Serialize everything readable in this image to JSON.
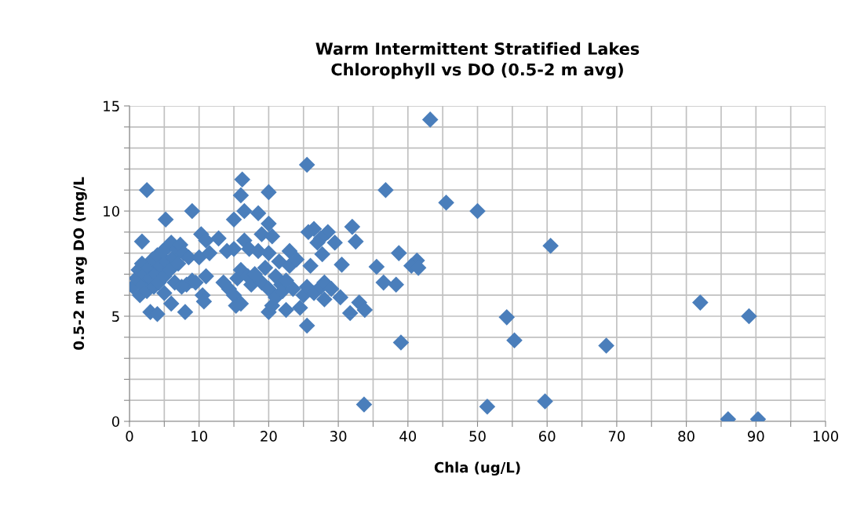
{
  "chart_data": {
    "type": "scatter",
    "title": "Warm Intermittent Stratified Lakes\nChlorophyll vs DO (0.5-2 m avg)",
    "xlabel": "Chla (ug/L)",
    "ylabel": "0.5-2 m avg DO (mg/L",
    "xlim": [
      0,
      100
    ],
    "ylim": [
      0,
      15
    ],
    "xticks": [
      0,
      {
        "value": 5,
        "label": null
      },
      10,
      {
        "value": 15,
        "label": null
      },
      20,
      {
        "value": 25,
        "label": null
      },
      30,
      {
        "value": 35,
        "label": null
      },
      40,
      {
        "value": 45,
        "label": null
      },
      50,
      {
        "value": 55,
        "label": null
      },
      60,
      {
        "value": 65,
        "label": null
      },
      70,
      {
        "value": 75,
        "label": null
      },
      80,
      {
        "value": 85,
        "label": null
      },
      90,
      {
        "value": 95,
        "label": null
      },
      100
    ],
    "yticks": [
      0,
      {
        "value": 1,
        "label": null
      },
      {
        "value": 2,
        "label": null
      },
      {
        "value": 3,
        "label": null
      },
      {
        "value": 4,
        "label": null
      },
      5,
      {
        "value": 6,
        "label": null
      },
      {
        "value": 7,
        "label": null
      },
      {
        "value": 8,
        "label": null
      },
      {
        "value": 9,
        "label": null
      },
      10,
      {
        "value": 11,
        "label": null
      },
      {
        "value": 12,
        "label": null
      },
      {
        "value": 13,
        "label": null
      },
      {
        "value": 14,
        "label": null
      },
      15
    ],
    "grid": true,
    "marker": "diamond",
    "legend": false,
    "series": [
      {
        "color": "#4a7ebb",
        "x": [
          43.2,
          25.5,
          16.2,
          2.5,
          36.8,
          20,
          16,
          45.5,
          50,
          9,
          16.5,
          18.5,
          5.2,
          15,
          20,
          60.5,
          32,
          26.5,
          28.5,
          25.7,
          1.8,
          32.5,
          29.5,
          27.5,
          10.3,
          12.8,
          11,
          38.7,
          27.7,
          41.3,
          40.5,
          41.5,
          35.5,
          30.5,
          36.5,
          38.3,
          33,
          33.8,
          31.7,
          25.5,
          39,
          54.2,
          55.3,
          68.5,
          82,
          89,
          33.7,
          51.4,
          59.7,
          86,
          90.3,
          0.5,
          1,
          1.3,
          1.5,
          1.8,
          2,
          2.2,
          2.5,
          2.8,
          3,
          3,
          3.3,
          3.5,
          3.8,
          4,
          4,
          4.2,
          4.5,
          4.8,
          5,
          5,
          5.3,
          5.5,
          5.8,
          6,
          6,
          6.3,
          6.5,
          6.8,
          7,
          7.3,
          7.5,
          7.8,
          8,
          8.2,
          8.5,
          9,
          9.5,
          10,
          10.5,
          10.7,
          11,
          11.5,
          13.5,
          14,
          14.3,
          15,
          15,
          15.3,
          15.5,
          16,
          16,
          16.5,
          17,
          17.2,
          17.5,
          18,
          18.5,
          19,
          19,
          19.5,
          20,
          20,
          20,
          20.5,
          20.5,
          21,
          21,
          21.5,
          21.8,
          22,
          22.5,
          22.5,
          23,
          23,
          23.5,
          24,
          24.5,
          25,
          25.5,
          26,
          26.5,
          27,
          27.5,
          28,
          28,
          29,
          30.3
        ],
        "values": [
          14.35,
          12.2,
          11.5,
          11.0,
          11.0,
          10.9,
          10.75,
          10.4,
          10.0,
          10.0,
          10.0,
          9.9,
          9.6,
          9.6,
          9.4,
          8.35,
          9.25,
          9.15,
          9.0,
          9.0,
          8.55,
          8.55,
          8.5,
          8.7,
          8.9,
          8.7,
          8.6,
          8.0,
          7.95,
          7.65,
          7.4,
          7.3,
          7.35,
          7.45,
          6.6,
          6.5,
          5.65,
          5.3,
          5.15,
          4.55,
          3.75,
          4.95,
          3.85,
          3.6,
          5.65,
          5.0,
          0.8,
          0.7,
          0.95,
          0.1,
          0.1,
          6.4,
          6.8,
          7.2,
          6.0,
          7.5,
          6.5,
          7.0,
          6.2,
          7.3,
          6.8,
          5.2,
          7.7,
          6.4,
          7.0,
          5.1,
          7.9,
          6.6,
          7.4,
          8.1,
          6.9,
          6.1,
          7.6,
          8.3,
          7.2,
          8.5,
          5.6,
          7.8,
          6.6,
          8.2,
          7.5,
          8.4,
          6.4,
          8.0,
          5.2,
          6.5,
          7.8,
          6.7,
          6.6,
          7.8,
          6.0,
          5.7,
          6.9,
          8.0,
          6.6,
          8.1,
          6.3,
          6.0,
          8.2,
          5.5,
          6.8,
          5.6,
          7.2,
          8.6,
          6.9,
          8.2,
          6.5,
          7.0,
          8.1,
          6.6,
          8.9,
          7.3,
          5.2,
          6.3,
          8.0,
          5.5,
          8.8,
          6.9,
          5.9,
          7.6,
          6.5,
          6.2,
          5.3,
          6.7,
          7.4,
          8.1,
          6.3,
          7.7,
          5.4,
          6.0,
          6.4,
          7.4,
          6.1,
          8.5,
          6.4,
          6.6,
          5.8,
          6.3,
          5.9
        ]
      }
    ]
  }
}
